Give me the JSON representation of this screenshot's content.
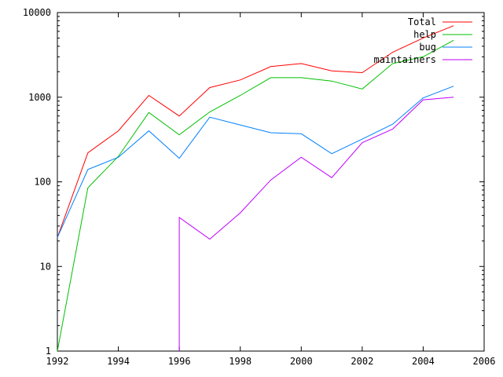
{
  "chart_data": {
    "type": "line",
    "title": "",
    "xlabel": "",
    "ylabel": "",
    "xlim": [
      1992,
      2006
    ],
    "ylim": [
      1,
      10000
    ],
    "yscale": "log",
    "grid": false,
    "legend_position": "top-right",
    "x_ticks": [
      1992,
      1994,
      1996,
      1998,
      2000,
      2002,
      2004,
      2006
    ],
    "y_ticks": [
      1,
      10,
      100,
      1000,
      10000
    ],
    "x_tick_labels": [
      "1992",
      "1994",
      "1996",
      "1998",
      "2000",
      "2002",
      "2004",
      "2006"
    ],
    "y_tick_labels": [
      "1",
      "10",
      "100",
      "1000",
      "10000"
    ],
    "series": [
      {
        "name": "Total",
        "color": "#ff0000",
        "x": [
          1992,
          1993,
          1994,
          1995,
          1996,
          1997,
          1998,
          1999,
          2000,
          2001,
          2002,
          2003,
          2004,
          2005
        ],
        "values": [
          22,
          220,
          400,
          1050,
          600,
          1300,
          1600,
          2300,
          2500,
          2050,
          1950,
          3400,
          5000,
          7000
        ]
      },
      {
        "name": "help",
        "color": "#00c000",
        "x": [
          1992,
          1993,
          1994,
          1995,
          1996,
          1997,
          1998,
          1999,
          2000,
          2001,
          2002,
          2003,
          2004,
          2005
        ],
        "values": [
          1,
          85,
          200,
          660,
          360,
          670,
          1050,
          1700,
          1700,
          1550,
          1250,
          2500,
          3000,
          4700
        ]
      },
      {
        "name": "bug",
        "color": "#0080ff",
        "x": [
          1992,
          1993,
          1994,
          1995,
          1996,
          1997,
          1998,
          1999,
          2000,
          2001,
          2002,
          2003,
          2004,
          2005
        ],
        "values": [
          22,
          140,
          195,
          400,
          190,
          580,
          470,
          380,
          370,
          215,
          320,
          480,
          980,
          1350
        ]
      },
      {
        "name": "maintainers",
        "color": "#c000ff",
        "x": [
          1996,
          1996,
          1997,
          1998,
          1999,
          2000,
          2001,
          2002,
          2003,
          2004,
          2005
        ],
        "values": [
          1,
          38,
          21,
          43,
          105,
          195,
          112,
          290,
          420,
          930,
          1000
        ]
      }
    ]
  }
}
